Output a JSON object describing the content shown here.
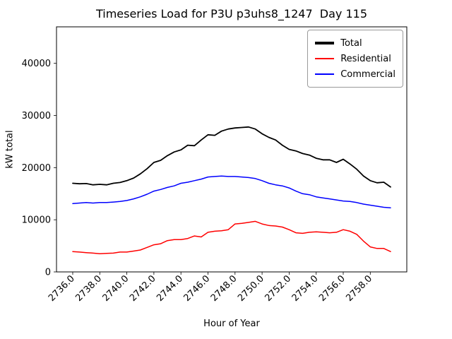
{
  "figure": {
    "title": "Timeseries Load for P3U p3uhs8_1247  Day 115",
    "xlabel": "Hour of Year",
    "ylabel": "kW total"
  },
  "legend": {
    "position": "top-right",
    "entries": [
      {
        "label": "Total",
        "color": "#000000"
      },
      {
        "label": "Residential",
        "color": "#ff0000"
      },
      {
        "label": "Commercial",
        "color": "#0000ff"
      }
    ]
  },
  "chart_data": {
    "type": "line",
    "title": "Timeseries Load for P3U p3uhs8_1247  Day 115",
    "xlabel": "Hour of Year",
    "ylabel": "kW total",
    "legend_position": "top-right",
    "grid": false,
    "xlim": [
      2734.8,
      2760.7
    ],
    "ylim": [
      0,
      47000
    ],
    "xticks": [
      2736,
      2738,
      2740,
      2742,
      2744,
      2746,
      2748,
      2750,
      2752,
      2754,
      2756,
      2758
    ],
    "xtick_labels": [
      "2736.0",
      "2738.0",
      "2740.0",
      "2742.0",
      "2744.0",
      "2746.0",
      "2748.0",
      "2750.0",
      "2752.0",
      "2754.0",
      "2756.0",
      "2758.0"
    ],
    "yticks": [
      0,
      10000,
      20000,
      30000,
      40000
    ],
    "ytick_labels": [
      "0",
      "10000",
      "20000",
      "30000",
      "40000"
    ],
    "x": [
      2736.0,
      2736.5,
      2737.0,
      2737.5,
      2738.0,
      2738.5,
      2739.0,
      2739.5,
      2740.0,
      2740.5,
      2741.0,
      2741.5,
      2742.0,
      2742.5,
      2743.0,
      2743.5,
      2744.0,
      2744.5,
      2745.0,
      2745.5,
      2746.0,
      2746.5,
      2747.0,
      2747.5,
      2748.0,
      2748.5,
      2749.0,
      2749.5,
      2750.0,
      2750.5,
      2751.0,
      2751.5,
      2752.0,
      2752.5,
      2753.0,
      2753.5,
      2754.0,
      2754.5,
      2755.0,
      2755.5,
      2756.0,
      2756.5,
      2757.0,
      2757.5,
      2758.0,
      2758.5,
      2759.0,
      2759.5
    ],
    "series": [
      {
        "name": "Total",
        "color": "#000000",
        "linewidth": 1.8,
        "values": [
          17000,
          16900,
          16950,
          16700,
          16800,
          16700,
          17000,
          17150,
          17500,
          18000,
          18800,
          19800,
          21000,
          21400,
          22300,
          23000,
          23400,
          24300,
          24200,
          25300,
          26300,
          26200,
          27000,
          27400,
          27600,
          27700,
          27800,
          27400,
          26500,
          25800,
          25300,
          24300,
          23500,
          23200,
          22700,
          22400,
          21800,
          21500,
          21500,
          21000,
          21600,
          20700,
          19700,
          18400,
          17500,
          17100,
          17200,
          16300
        ]
      },
      {
        "name": "Residential",
        "color": "#ff0000",
        "linewidth": 1.5,
        "values": [
          3900,
          3800,
          3700,
          3600,
          3500,
          3550,
          3600,
          3800,
          3800,
          4000,
          4200,
          4700,
          5200,
          5400,
          6000,
          6200,
          6200,
          6400,
          6900,
          6700,
          7600,
          7800,
          7900,
          8100,
          9200,
          9300,
          9500,
          9700,
          9200,
          8900,
          8800,
          8600,
          8100,
          7500,
          7400,
          7600,
          7700,
          7600,
          7500,
          7600,
          8100,
          7800,
          7200,
          5900,
          4800,
          4500,
          4500,
          3900
        ]
      },
      {
        "name": "Commercial",
        "color": "#0000ff",
        "linewidth": 1.5,
        "values": [
          13100,
          13200,
          13300,
          13200,
          13300,
          13300,
          13400,
          13500,
          13700,
          14000,
          14400,
          14900,
          15500,
          15800,
          16200,
          16500,
          17000,
          17200,
          17500,
          17800,
          18200,
          18300,
          18400,
          18300,
          18300,
          18200,
          18100,
          17900,
          17500,
          17000,
          16700,
          16500,
          16100,
          15500,
          15000,
          14800,
          14400,
          14200,
          14000,
          13800,
          13600,
          13500,
          13300,
          13000,
          12800,
          12600,
          12400,
          12300
        ]
      }
    ]
  }
}
